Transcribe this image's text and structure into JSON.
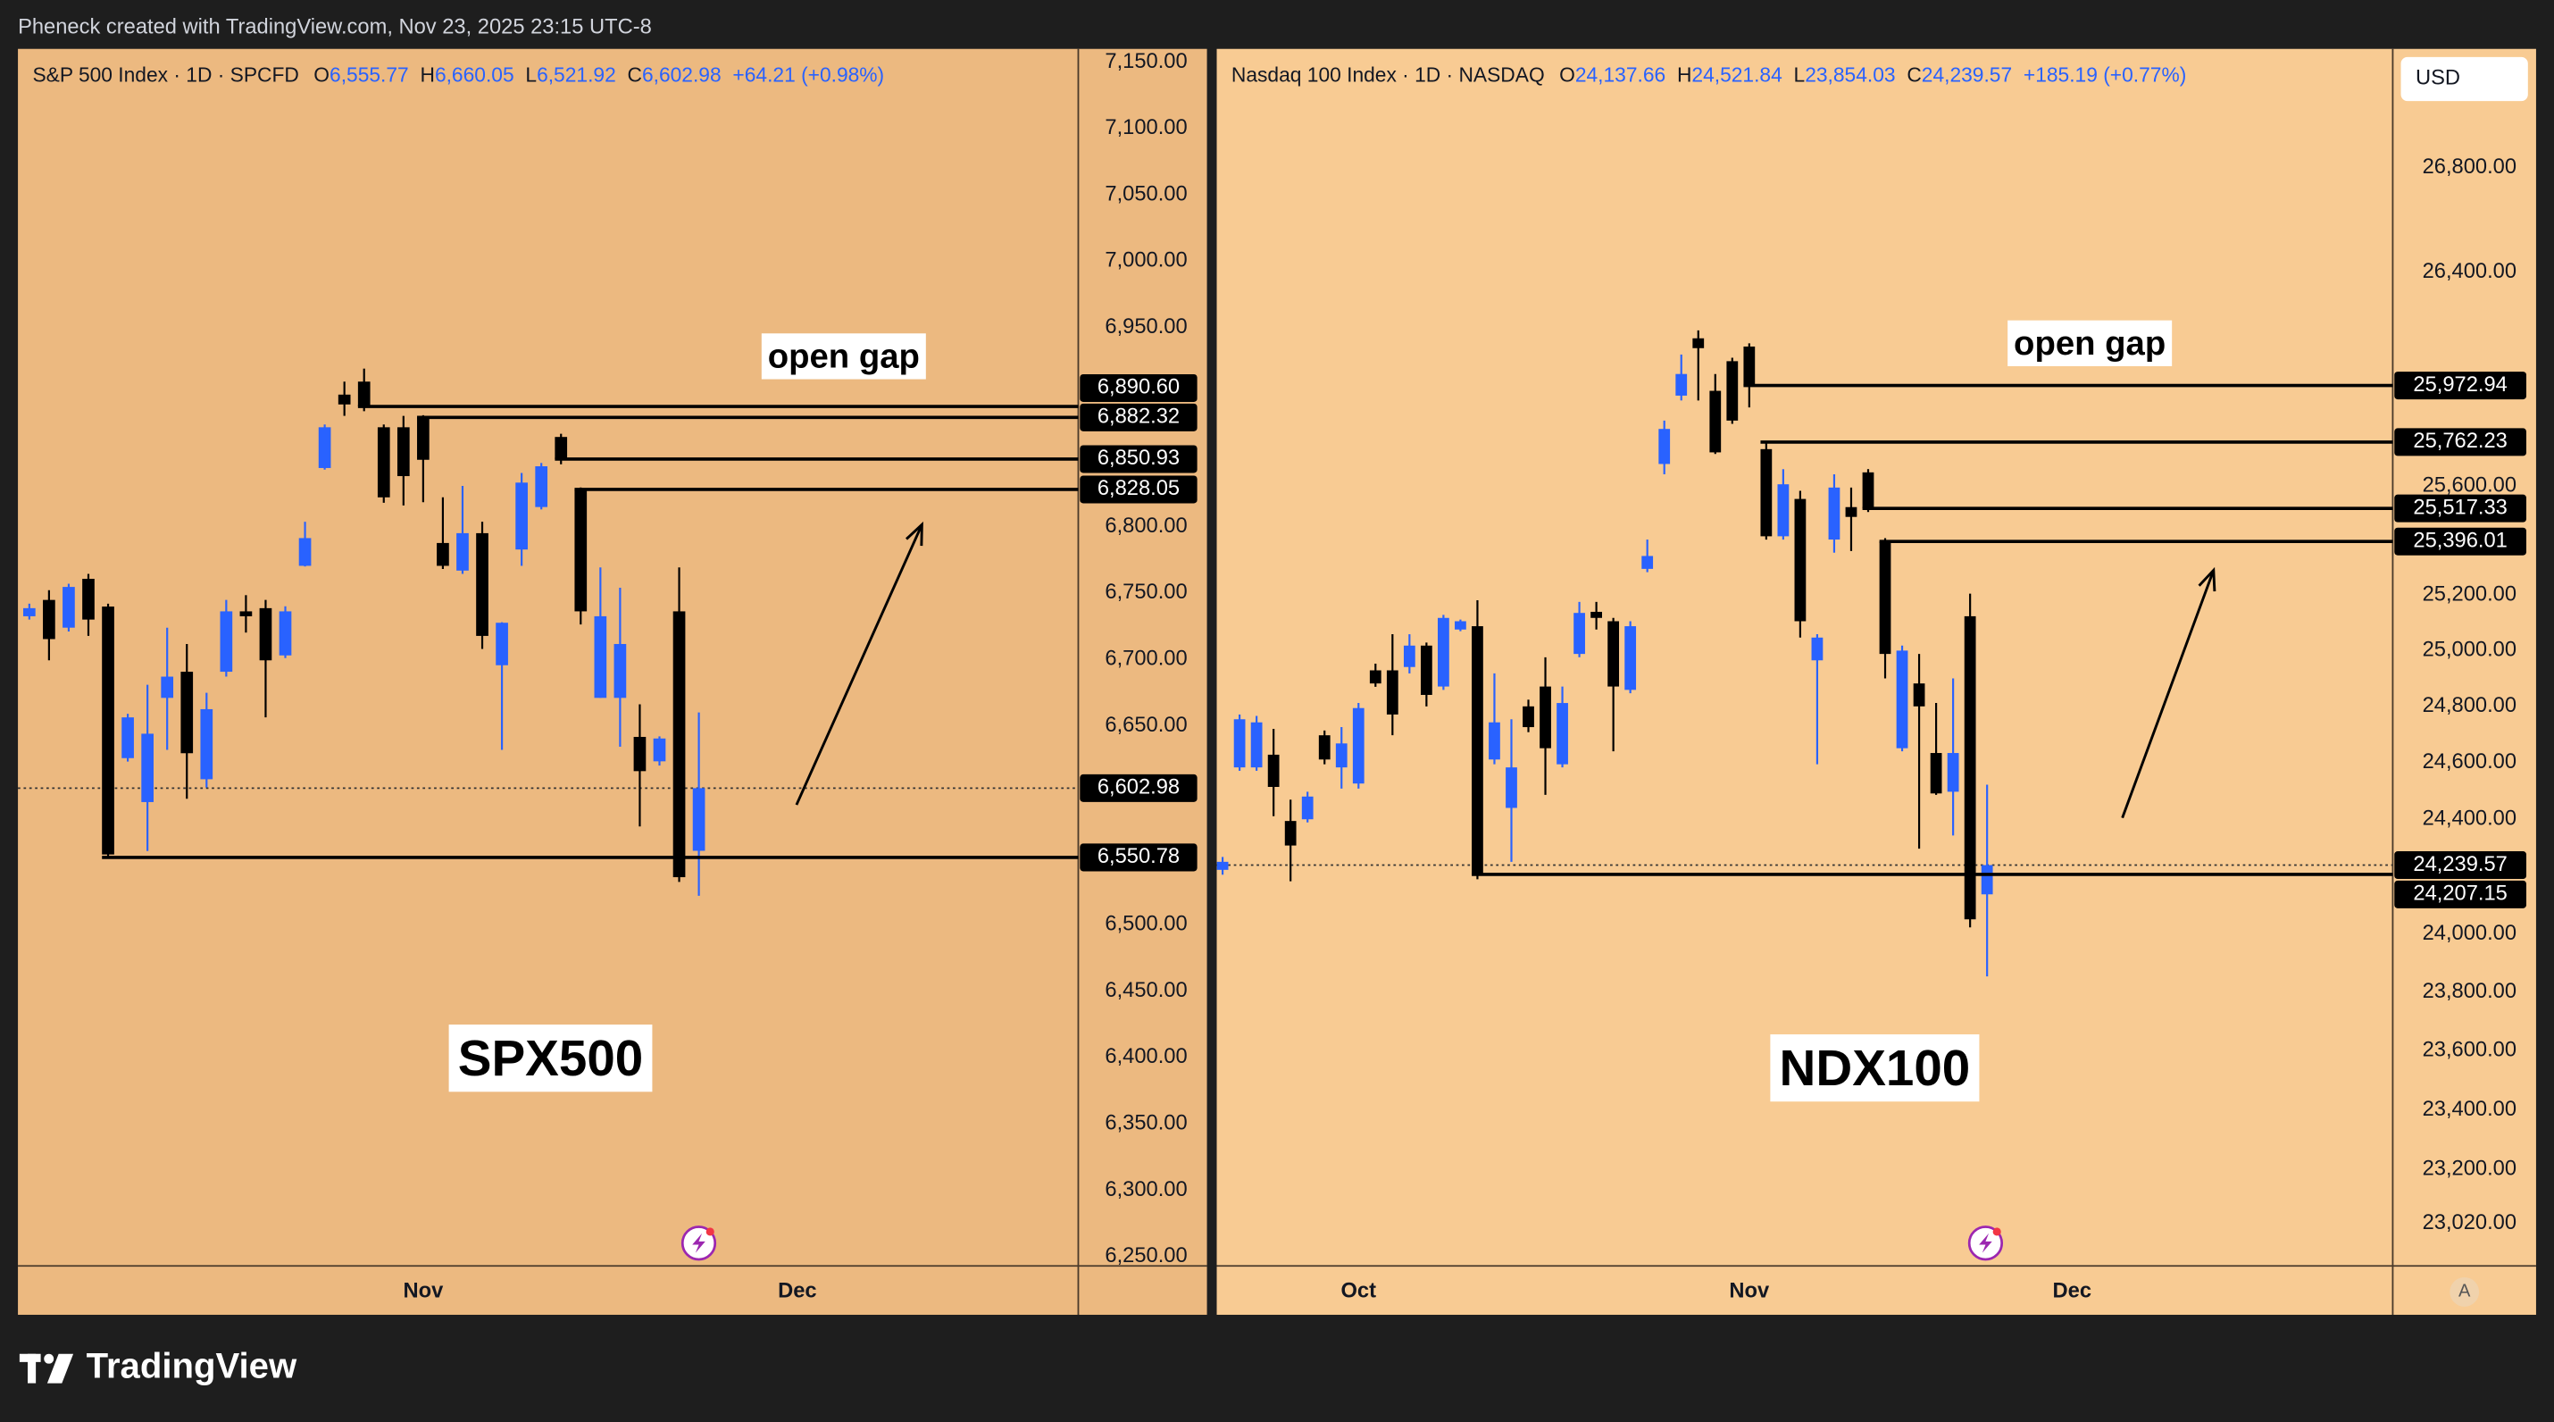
{
  "header": "Pheneck created with TradingView.com, Nov 23, 2025 23:15 UTC-8",
  "currency": "USD",
  "scale_mode": "A",
  "brand": "TradingView",
  "chart_data": [
    {
      "type": "candlestick",
      "title": "S&P 500 Index · 1D · SPCFD",
      "legend": [
        {
          "key": "O",
          "label": "6,555.77"
        },
        {
          "key": "H",
          "label": "6,660.05"
        },
        {
          "key": "L",
          "label": "6,521.92"
        },
        {
          "key": "C",
          "label": "6,602.98"
        }
      ],
      "change": "+64.21 (+0.98%)",
      "note": "open gap",
      "watermark": "SPX500",
      "up_color": "#2962ff",
      "down_color": "#000000",
      "log_scale": false,
      "categories": [
        null,
        null,
        null,
        null,
        null,
        null,
        null,
        null,
        null,
        null,
        null,
        null,
        null,
        null,
        null,
        null,
        null,
        null,
        null,
        null,
        null,
        null,
        null,
        null,
        null,
        null,
        null,
        null,
        null,
        null,
        null,
        null,
        null,
        null,
        null
      ],
      "xticks": [
        {
          "value": 20,
          "label": "Nov"
        },
        {
          "value": 39,
          "label": "Dec"
        }
      ],
      "open": [
        6732.5,
        6744.8,
        6723.9,
        6760.7,
        6739.8,
        6625.6,
        6592.5,
        6671,
        6690.7,
        6609.7,
        6690.7,
        6736.2,
        6738.6,
        6703,
        6770.5,
        6844.2,
        6899.5,
        6909.3,
        6874.9,
        6874.9,
        6882.3,
        6787.7,
        6766.9,
        6795.1,
        6695.6,
        6782.8,
        6814.8,
        6867.6,
        6828,
        6671,
        6671,
        6641.6,
        6623.2,
        6736.2,
        6555.77
      ],
      "high": [
        6742,
        6752.1,
        6757,
        6764.4,
        6742,
        6659,
        6680.9,
        6723.9,
        6711.6,
        6674.8,
        6744.8,
        6748.4,
        6744.8,
        6740,
        6803.7,
        6877,
        6909.3,
        6919.1,
        6877,
        6883.5,
        6884,
        6822.1,
        6830.7,
        6803.7,
        6728,
        6840.5,
        6848,
        6870,
        6829.5,
        6769.3,
        6754,
        6666.2,
        6642,
        6769.3,
        6660.05
      ],
      "low": [
        6730,
        6699.3,
        6721,
        6717.7,
        6550.78,
        6623,
        6555.6,
        6631.8,
        6595,
        6603.5,
        6687,
        6720.2,
        6656.3,
        6701,
        6770,
        6843,
        6883.5,
        6887,
        6818,
        6816,
        6818.4,
        6768.1,
        6764.4,
        6707.9,
        6631.8,
        6770.5,
        6813,
        6847,
        6726.3,
        6671,
        6634.2,
        6574.1,
        6620,
        6532.3,
        6521.92
      ],
      "close": [
        6738.6,
        6715.3,
        6754.6,
        6730,
        6553,
        6656.3,
        6644,
        6687,
        6629.3,
        6662.5,
        6736.2,
        6732.5,
        6699.3,
        6736.2,
        6791.4,
        6874.9,
        6892.1,
        6890.6,
        6822.1,
        6838.1,
        6850.4,
        6770.5,
        6795.1,
        6717.7,
        6727.6,
        6833.2,
        6845.5,
        6850.9,
        6736.2,
        6732.5,
        6711.6,
        6615.8,
        6640.4,
        6535.9,
        6602.98
      ],
      "levels": [
        {
          "value": 6890.6,
          "label": "6,890.60"
        },
        {
          "value": 6882.32,
          "label": "6,882.32"
        },
        {
          "value": 6850.93,
          "label": "6,850.93"
        },
        {
          "value": 6828.05,
          "label": "6,828.05"
        },
        {
          "value": 6550.78,
          "label": "6,550.78"
        }
      ],
      "last_price": {
        "value": 6602.98,
        "label": "6,602.98"
      },
      "ylim": [
        6243,
        7160
      ],
      "yticks": [
        {
          "value": 7150,
          "label": "7,150.00"
        },
        {
          "value": 7100,
          "label": "7,100.00"
        },
        {
          "value": 7050,
          "label": "7,050.00"
        },
        {
          "value": 7000,
          "label": "7,000.00"
        },
        {
          "value": 6950,
          "label": "6,950.00"
        },
        {
          "value": 6800,
          "label": "6,800.00"
        },
        {
          "value": 6750,
          "label": "6,750.00"
        },
        {
          "value": 6700,
          "label": "6,700.00"
        },
        {
          "value": 6650,
          "label": "6,650.00"
        },
        {
          "value": 6500,
          "label": "6,500.00"
        },
        {
          "value": 6450,
          "label": "6,450.00"
        },
        {
          "value": 6400,
          "label": "6,400.00"
        },
        {
          "value": 6350,
          "label": "6,350.00"
        },
        {
          "value": 6300,
          "label": "6,300.00"
        },
        {
          "value": 6250,
          "label": "6,250.00"
        }
      ]
    },
    {
      "type": "candlestick",
      "title": "Nasdaq 100 Index · 1D · NASDAQ",
      "legend": [
        {
          "key": "O",
          "label": "24,137.66"
        },
        {
          "key": "H",
          "label": "24,521.84"
        },
        {
          "key": "L",
          "label": "23,854.03"
        },
        {
          "key": "C",
          "label": "24,239.57"
        }
      ],
      "change": "+185.19 (+0.77%)",
      "note": "open gap",
      "watermark": "NDX100",
      "up_color": "#2962ff",
      "down_color": "#000000",
      "log_scale": true,
      "categories": [
        null,
        null,
        null,
        null,
        null,
        null,
        null,
        null,
        null,
        null,
        null,
        null,
        null,
        null,
        null,
        null,
        null,
        null,
        null,
        null,
        null,
        null,
        null,
        null,
        null,
        null,
        null,
        null,
        null,
        null,
        null,
        null,
        null,
        null,
        null,
        null,
        null,
        null,
        null,
        null,
        null,
        null,
        null,
        null,
        null,
        null
      ],
      "xticks": [
        {
          "value": 8,
          "label": "Oct"
        },
        {
          "value": 31,
          "label": "Nov"
        },
        {
          "value": 50,
          "label": "Dec"
        }
      ],
      "open": [
        24223,
        24583,
        24583,
        24628,
        24394,
        24400,
        24697,
        24583,
        24526,
        24929,
        24929,
        24941,
        25018,
        24871,
        25076,
        25088,
        24611,
        24440,
        24800,
        24871,
        24594,
        24988,
        25140,
        25106,
        24859,
        25296,
        25681,
        25935,
        26150,
        25953,
        26064,
        26119,
        25736,
        25415,
        25552,
        24965,
        25403,
        25522,
        25650,
        25396.01,
        24651,
        24882,
        24634,
        24497,
        25124,
        24137.66
      ],
      "high": [
        24268,
        24771,
        24766,
        24720,
        24469,
        24497,
        24714,
        24726,
        24812,
        24953,
        25059,
        25059,
        25029,
        25129,
        25112,
        25182,
        24918,
        24754,
        24824,
        24976,
        24871,
        25176,
        25176,
        25118,
        25106,
        25403,
        25842,
        26089,
        26180,
        26016,
        26077,
        26131,
        25762.23,
        25662,
        25582,
        25059,
        25643,
        25594,
        25662,
        25408,
        25018,
        24988,
        24812,
        24900,
        25206,
        24521.84
      ],
      "low": [
        24206,
        24571,
        24571,
        24411,
        24183,
        24389,
        24594,
        24508,
        24508,
        24870,
        24697,
        24918,
        24800,
        24859,
        25070,
        24190,
        24594,
        24251,
        24708,
        24486,
        24583,
        24976,
        25076,
        24640,
        24847,
        25284,
        25643,
        25917,
        25917,
        25718,
        25830,
        25891,
        25403,
        25403,
        25047,
        24594,
        25355,
        25361,
        25504,
        24900,
        24640,
        24297,
        24486,
        24343,
        24023,
        23854.03
      ],
      "close": [
        24251,
        24754,
        24743,
        24514,
        24308,
        24480,
        24611,
        24668,
        24794,
        24882,
        24771,
        25018,
        24841,
        25118,
        25106,
        24207.15,
        24743,
        24583,
        24726,
        24651,
        24812,
        25136,
        25118,
        24871,
        25088,
        25343,
        25811,
        26016,
        26113,
        25724,
        25842,
        25972.94,
        25415,
        25606,
        25106,
        25047,
        25594,
        25486,
        25517.33,
        24988,
        25000,
        24800,
        24491,
        24634,
        24051,
        24239.57
      ],
      "levels": [
        {
          "value": 25972.94,
          "label": "25,972.94"
        },
        {
          "value": 25762.23,
          "label": "25,762.23"
        },
        {
          "value": 25517.33,
          "label": "25,517.33"
        },
        {
          "value": 25396.01,
          "label": "25,396.01"
        },
        {
          "value": 24207.15,
          "label": "24,207.15"
        }
      ],
      "last_price": {
        "value": 24239.57,
        "label": "24,239.57"
      },
      "ylim": [
        22880,
        27263
      ],
      "yticks": [
        {
          "value": 26800,
          "label": "26,800.00"
        },
        {
          "value": 26400,
          "label": "26,400.00"
        },
        {
          "value": 25600,
          "label": "25,600.00"
        },
        {
          "value": 25200,
          "label": "25,200.00"
        },
        {
          "value": 25000,
          "label": "25,000.00"
        },
        {
          "value": 24800,
          "label": "24,800.00"
        },
        {
          "value": 24600,
          "label": "24,600.00"
        },
        {
          "value": 24400,
          "label": "24,400.00"
        },
        {
          "value": 24000,
          "label": "24,000.00"
        },
        {
          "value": 23800,
          "label": "23,800.00"
        },
        {
          "value": 23600,
          "label": "23,600.00"
        },
        {
          "value": 23400,
          "label": "23,400.00"
        },
        {
          "value": 23200,
          "label": "23,200.00"
        },
        {
          "value": 23020,
          "label": "23,020.00"
        }
      ]
    }
  ]
}
